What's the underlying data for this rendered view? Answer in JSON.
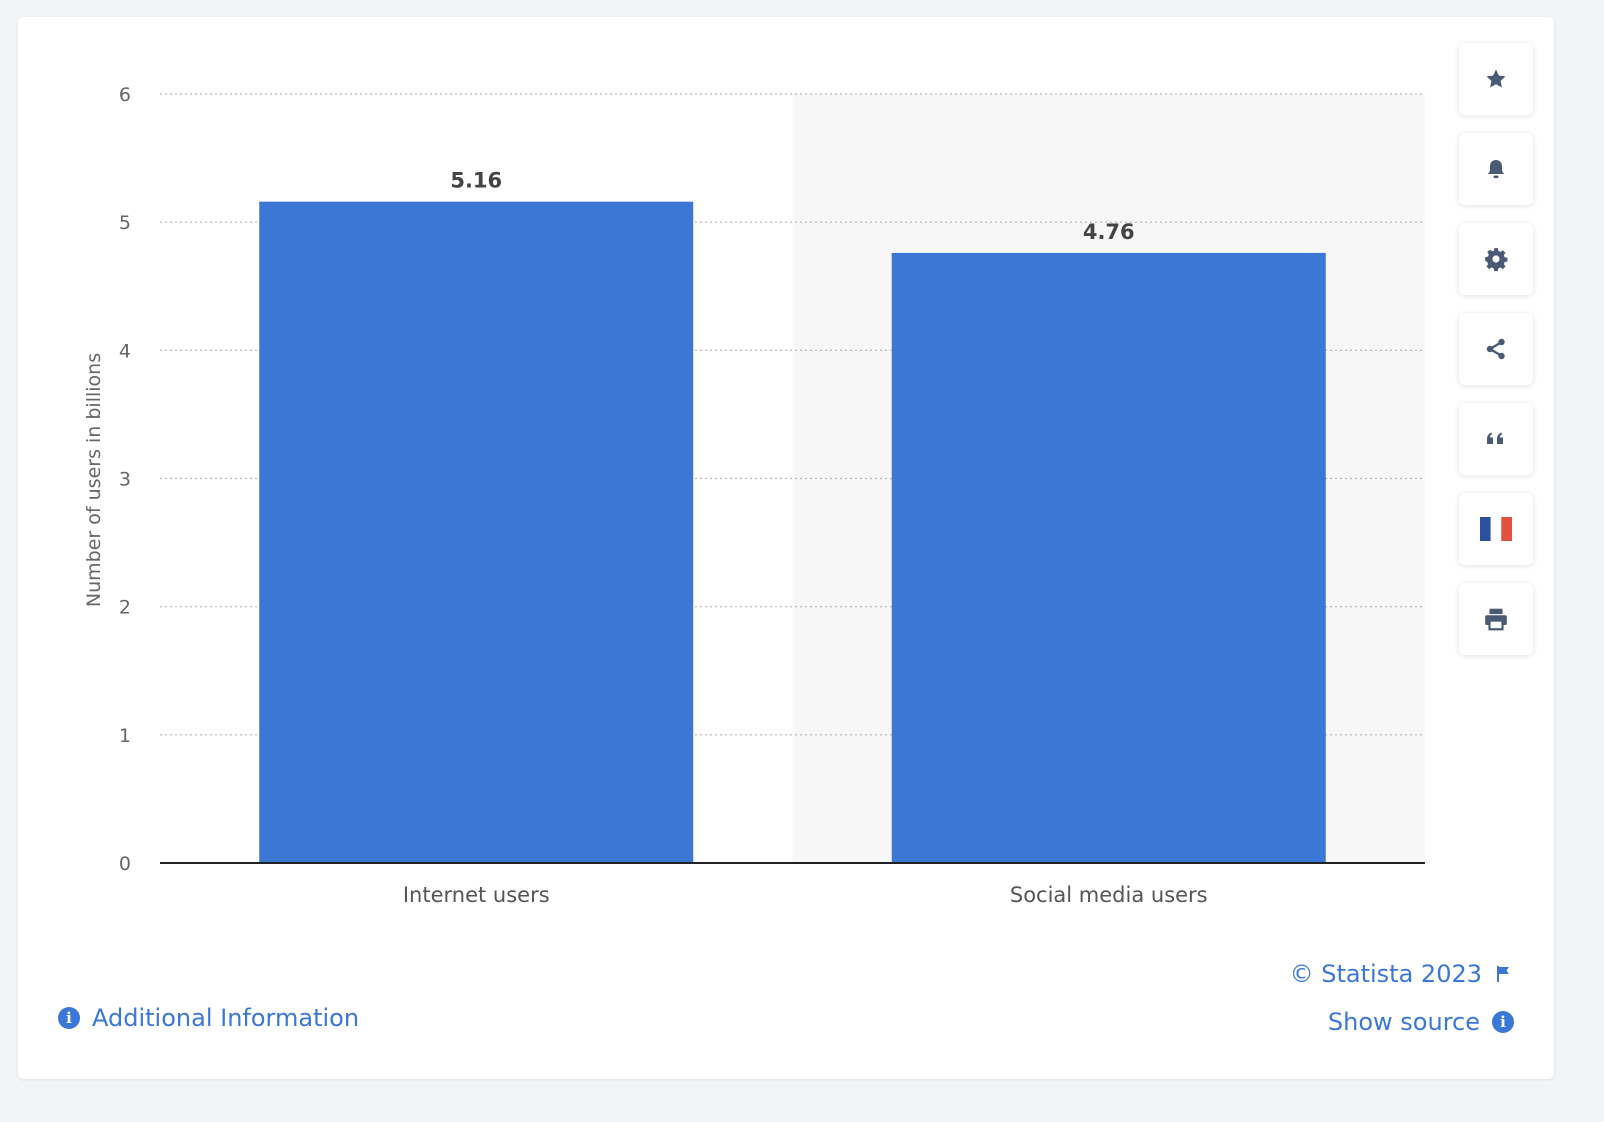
{
  "chart_data": {
    "type": "bar",
    "categories": [
      "Internet users",
      "Social media users"
    ],
    "values": [
      5.16,
      4.76
    ],
    "value_labels": [
      "5.16",
      "4.76"
    ],
    "ylabel": "Number of users in billions",
    "ylim": [
      0,
      6
    ],
    "yticks": [
      "0",
      "1",
      "2",
      "3",
      "4",
      "5",
      "6"
    ],
    "grid": true,
    "bar_color": "#3c77d6",
    "highlight_color": "#f7f7f7"
  },
  "footer": {
    "copyright": "© Statista 2023",
    "show_source": "Show source",
    "additional_info": "Additional Information"
  },
  "toolbar": {
    "icons": [
      "star-icon",
      "bell-icon",
      "gear-icon",
      "share-icon",
      "quote-icon",
      "french-flag-icon",
      "print-icon"
    ]
  },
  "colors": {
    "accent": "#3b77d6",
    "icon": "#4a5a75"
  }
}
